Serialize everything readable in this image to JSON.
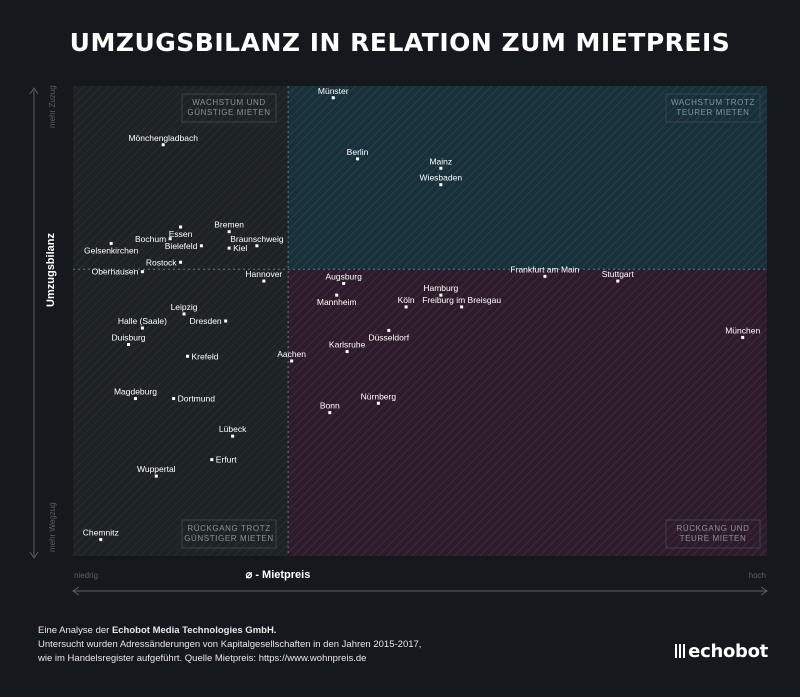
{
  "title": "UMZUGSBILANZ IN RELATION ZUM MIETPREIS",
  "chart_data": {
    "type": "scatter",
    "title": "UMZUGSBILANZ IN RELATION ZUM MIETPREIS",
    "xlabel": "⌀ - Mietpreis",
    "ylabel": "Umzugsbilanz",
    "x_low_label": "niedrig",
    "x_high_label": "hoch",
    "y_high_label": "mehr Zuzug",
    "y_low_label": "mehr Wegzug",
    "xlim": [
      0,
      100
    ],
    "ylim": [
      0,
      100
    ],
    "x_divider": 31,
    "y_divider": 61,
    "quadrants": {
      "top_left": [
        "WACHSTUM UND",
        "GÜNSTIGE MIETEN"
      ],
      "top_right": [
        "WACHSTUM TROTZ",
        "TEURER MIETEN"
      ],
      "bottom_left": [
        "RÜCKGANG TROTZ",
        "GÜNSTIGER MIETEN"
      ],
      "bottom_right": [
        "RÜCKGANG UND",
        "TEURE MIETEN"
      ]
    },
    "points": [
      {
        "name": "Münster",
        "x": 37.5,
        "y": 97.5,
        "label": "above"
      },
      {
        "name": "Mönchengladbach",
        "x": 13,
        "y": 87.5,
        "label": "above"
      },
      {
        "name": "Berlin",
        "x": 41,
        "y": 84.5,
        "label": "above"
      },
      {
        "name": "Mainz",
        "x": 53,
        "y": 82.5,
        "label": "above"
      },
      {
        "name": "Wiesbaden",
        "x": 53,
        "y": 79,
        "label": "above"
      },
      {
        "name": "Essen",
        "x": 15.5,
        "y": 70,
        "label": "below"
      },
      {
        "name": "Bremen",
        "x": 22.5,
        "y": 69,
        "label": "above"
      },
      {
        "name": "Bochum",
        "x": 14,
        "y": 67.5,
        "label": "left"
      },
      {
        "name": "Braunschweig",
        "x": 26.5,
        "y": 66,
        "label": "above"
      },
      {
        "name": "Gelsenkirchen",
        "x": 5.5,
        "y": 66.5,
        "label": "below"
      },
      {
        "name": "Bielefeld",
        "x": 18.5,
        "y": 66,
        "label": "left"
      },
      {
        "name": "Kiel",
        "x": 22.5,
        "y": 65.5,
        "label": "right"
      },
      {
        "name": "Rostock",
        "x": 15.5,
        "y": 62.5,
        "label": "left"
      },
      {
        "name": "Oberhausen",
        "x": 10,
        "y": 60.5,
        "label": "left"
      },
      {
        "name": "Hannover",
        "x": 27.5,
        "y": 58.5,
        "label": "above"
      },
      {
        "name": "Augsburg",
        "x": 39,
        "y": 58,
        "label": "above"
      },
      {
        "name": "Frankfurt am Main",
        "x": 68,
        "y": 59.5,
        "label": "above"
      },
      {
        "name": "Stuttgart",
        "x": 78.5,
        "y": 58.5,
        "label": "above"
      },
      {
        "name": "Hamburg",
        "x": 53,
        "y": 55.5,
        "label": "above"
      },
      {
        "name": "Mannheim",
        "x": 38,
        "y": 55.5,
        "label": "below"
      },
      {
        "name": "Köln",
        "x": 48,
        "y": 53,
        "label": "above"
      },
      {
        "name": "Freiburg im Breisgau",
        "x": 56,
        "y": 53,
        "label": "above"
      },
      {
        "name": "Leipzig",
        "x": 16,
        "y": 51.5,
        "label": "above"
      },
      {
        "name": "Dresden",
        "x": 22,
        "y": 50,
        "label": "left"
      },
      {
        "name": "Halle (Saale)",
        "x": 10,
        "y": 48.5,
        "label": "above"
      },
      {
        "name": "Düsseldorf",
        "x": 45.5,
        "y": 48,
        "label": "below"
      },
      {
        "name": "München",
        "x": 96.5,
        "y": 46.5,
        "label": "above"
      },
      {
        "name": "Duisburg",
        "x": 8,
        "y": 45,
        "label": "above"
      },
      {
        "name": "Karlsruhe",
        "x": 39.5,
        "y": 43.5,
        "label": "above"
      },
      {
        "name": "Krefeld",
        "x": 16.5,
        "y": 42.5,
        "label": "right"
      },
      {
        "name": "Aachen",
        "x": 31.5,
        "y": 41.5,
        "label": "above"
      },
      {
        "name": "Magdeburg",
        "x": 9,
        "y": 33.5,
        "label": "above"
      },
      {
        "name": "Dortmund",
        "x": 14.5,
        "y": 33.5,
        "label": "right"
      },
      {
        "name": "Nürnberg",
        "x": 44,
        "y": 32.5,
        "label": "above"
      },
      {
        "name": "Bonn",
        "x": 37,
        "y": 30.5,
        "label": "above"
      },
      {
        "name": "Lübeck",
        "x": 23,
        "y": 25.5,
        "label": "above"
      },
      {
        "name": "Erfurt",
        "x": 20,
        "y": 20.5,
        "label": "right"
      },
      {
        "name": "Wuppertal",
        "x": 12,
        "y": 17,
        "label": "above"
      },
      {
        "name": "Chemnitz",
        "x": 4,
        "y": 3.5,
        "label": "above"
      }
    ]
  },
  "footer": {
    "line1_prefix": "Eine Analyse der",
    "line1_company": "Echobot Media Technologies GmbH.",
    "line2": "Untersucht wurden Adressänderungen von Kapitalgesellschaften in den Jahren 2015-2017,",
    "line3": "wie im Handelsregister aufgeführt. Quelle Mietpreis: https://www.wohnpreis.de"
  },
  "logo": "echobot",
  "colors": {
    "background": "#15181d",
    "top_right_fill": "#17303a",
    "bottom_right_fill": "#2c1b2a",
    "left_fill": "#1d2224",
    "hatch": "#ffffff",
    "divider": "#7fa0b0"
  }
}
